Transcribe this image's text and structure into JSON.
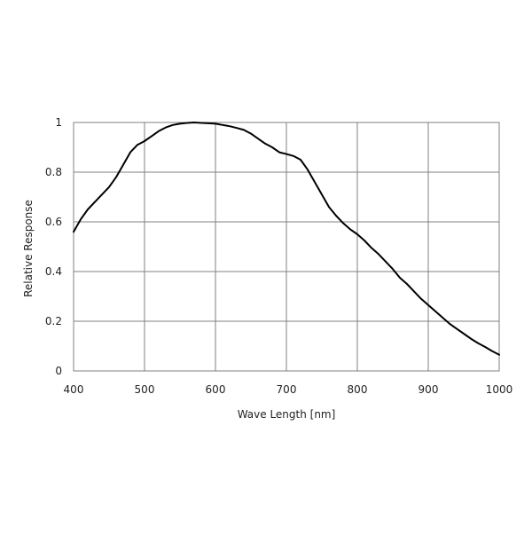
{
  "chart_data": {
    "type": "line",
    "title": "",
    "xlabel": "Wave Length [nm]",
    "ylabel": "Relative Response",
    "xlim": [
      400,
      1000
    ],
    "ylim": [
      0,
      1
    ],
    "x_ticks": [
      "400",
      "500",
      "600",
      "700",
      "800",
      "900",
      "1000"
    ],
    "y_ticks": [
      "0",
      "0.2",
      "0.4",
      "0.6",
      "0.8",
      "1"
    ],
    "grid": true,
    "legend": "none",
    "series": [
      {
        "color": "#000000",
        "points": [
          [
            400,
            0.56
          ],
          [
            410,
            0.61
          ],
          [
            420,
            0.65
          ],
          [
            430,
            0.68
          ],
          [
            440,
            0.71
          ],
          [
            450,
            0.74
          ],
          [
            460,
            0.78
          ],
          [
            470,
            0.83
          ],
          [
            480,
            0.88
          ],
          [
            490,
            0.91
          ],
          [
            500,
            0.925
          ],
          [
            510,
            0.945
          ],
          [
            520,
            0.965
          ],
          [
            530,
            0.98
          ],
          [
            540,
            0.99
          ],
          [
            550,
            0.995
          ],
          [
            560,
            0.998
          ],
          [
            570,
            1.0
          ],
          [
            580,
            0.998
          ],
          [
            590,
            0.997
          ],
          [
            600,
            0.995
          ],
          [
            610,
            0.99
          ],
          [
            620,
            0.985
          ],
          [
            630,
            0.978
          ],
          [
            640,
            0.97
          ],
          [
            650,
            0.955
          ],
          [
            660,
            0.935
          ],
          [
            670,
            0.915
          ],
          [
            680,
            0.9
          ],
          [
            690,
            0.88
          ],
          [
            700,
            0.873
          ],
          [
            710,
            0.865
          ],
          [
            720,
            0.85
          ],
          [
            730,
            0.81
          ],
          [
            740,
            0.76
          ],
          [
            750,
            0.71
          ],
          [
            760,
            0.66
          ],
          [
            770,
            0.625
          ],
          [
            780,
            0.595
          ],
          [
            790,
            0.57
          ],
          [
            800,
            0.55
          ],
          [
            810,
            0.525
          ],
          [
            820,
            0.495
          ],
          [
            830,
            0.47
          ],
          [
            840,
            0.44
          ],
          [
            850,
            0.41
          ],
          [
            860,
            0.375
          ],
          [
            870,
            0.35
          ],
          [
            880,
            0.32
          ],
          [
            890,
            0.29
          ],
          [
            900,
            0.265
          ],
          [
            910,
            0.24
          ],
          [
            920,
            0.215
          ],
          [
            930,
            0.19
          ],
          [
            940,
            0.17
          ],
          [
            950,
            0.15
          ],
          [
            960,
            0.13
          ],
          [
            970,
            0.112
          ],
          [
            980,
            0.097
          ],
          [
            990,
            0.08
          ],
          [
            1000,
            0.065
          ]
        ]
      }
    ]
  }
}
